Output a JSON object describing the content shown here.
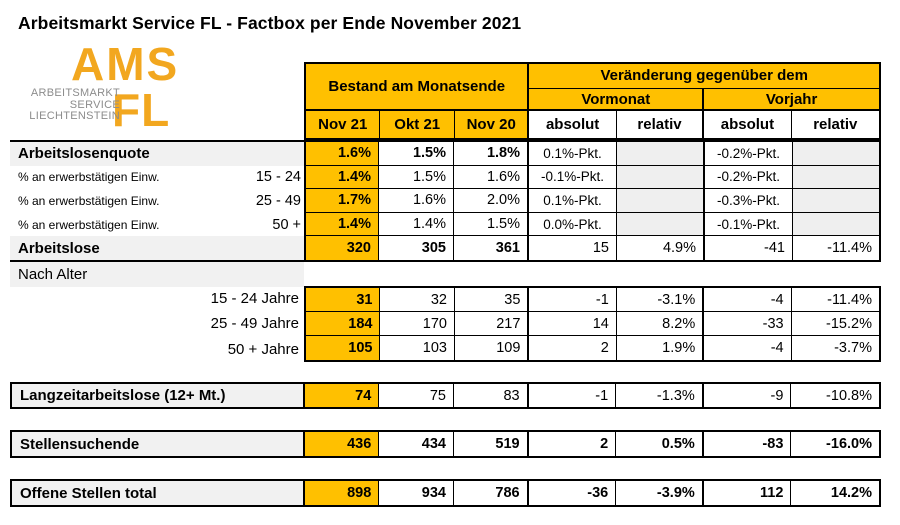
{
  "title": "Arbeitsmarkt Service FL - Factbox per Ende November 2021",
  "logo": {
    "ams": "AMS",
    "fl": "FL",
    "lines": [
      "ARBEITSMARKT",
      "SERVICE",
      "LIECHTENSTEIN"
    ]
  },
  "colors": {
    "accent_orange": "#FFC000",
    "logo_orange": "#F2A71F",
    "label_gray_bg": "#F1F1F1",
    "empty_cell_bg": "#EFEFEF"
  },
  "header": {
    "bestand": "Bestand am Monatsende",
    "veraenderung": "Veränderung gegenüber dem",
    "vormonat": "Vormonat",
    "vorjahr": "Vorjahr",
    "cols": [
      "Nov 21",
      "Okt 21",
      "Nov 20",
      "absolut",
      "relativ",
      "absolut",
      "relativ"
    ]
  },
  "table": {
    "block1": {
      "rows": [
        {
          "label": "Arbeitslosenquote",
          "v": [
            "1.6%",
            "1.5%",
            "1.8%",
            "0.1%-Pkt.",
            "",
            "-0.2%-Pkt.",
            ""
          ]
        },
        {
          "label": "% an erwerbstätigen Einw.",
          "range": "15 - 24",
          "v": [
            "1.4%",
            "1.5%",
            "1.6%",
            "-0.1%-Pkt.",
            "",
            "-0.2%-Pkt.",
            ""
          ]
        },
        {
          "label": "% an erwerbstätigen Einw.",
          "range": "25 - 49",
          "v": [
            "1.7%",
            "1.6%",
            "2.0%",
            "0.1%-Pkt.",
            "",
            "-0.3%-Pkt.",
            ""
          ]
        },
        {
          "label": "% an erwerbstätigen Einw.",
          "range": "50 +",
          "v": [
            "1.4%",
            "1.4%",
            "1.5%",
            "0.0%-Pkt.",
            "",
            "-0.1%-Pkt.",
            ""
          ]
        },
        {
          "label": "Arbeitslose",
          "v": [
            "320",
            "305",
            "361",
            "15",
            "4.9%",
            "-41",
            "-11.4%"
          ]
        }
      ]
    },
    "nach_alter": {
      "label": "Nach Alter",
      "rows": [
        {
          "label": "15 - 24 Jahre",
          "v": [
            "31",
            "32",
            "35",
            "-1",
            "-3.1%",
            "-4",
            "-11.4%"
          ]
        },
        {
          "label": "25 - 49 Jahre",
          "v": [
            "184",
            "170",
            "217",
            "14",
            "8.2%",
            "-33",
            "-15.2%"
          ]
        },
        {
          "label": "50 + Jahre",
          "v": [
            "105",
            "103",
            "109",
            "2",
            "1.9%",
            "-4",
            "-3.7%"
          ]
        }
      ]
    },
    "bands": [
      {
        "label": "Langzeitarbeitslose (12+ Mt.)",
        "v": [
          "74",
          "75",
          "83",
          "-1",
          "-1.3%",
          "-9",
          "-10.8%"
        ]
      },
      {
        "label": "Stellensuchende",
        "v": [
          "436",
          "434",
          "519",
          "2",
          "0.5%",
          "-83",
          "-16.0%"
        ]
      },
      {
        "label": "Offene Stellen total",
        "v": [
          "898",
          "934",
          "786",
          "-36",
          "-3.9%",
          "112",
          "14.2%"
        ]
      }
    ]
  }
}
